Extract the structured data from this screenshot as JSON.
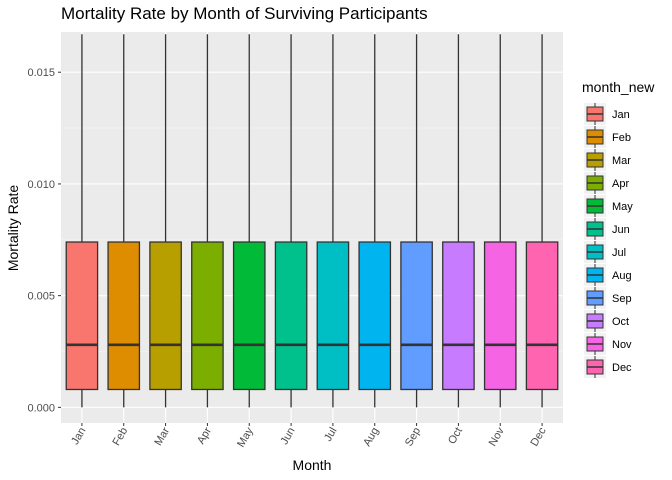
{
  "chart_data": {
    "type": "boxplot",
    "title": "Mortality Rate by Month of Surviving Participants",
    "xlabel": "Month",
    "ylabel": "Mortality Rate",
    "ylim": [
      -0.0007,
      0.0168
    ],
    "yticks": [
      0.0,
      0.005,
      0.01,
      0.015
    ],
    "ytick_labels": [
      "0.000",
      "0.005",
      "0.010",
      "0.015"
    ],
    "grid": true,
    "legend": {
      "title": "month_new",
      "position": "right"
    },
    "categories": [
      "Jan",
      "Feb",
      "Mar",
      "Apr",
      "May",
      "Jun",
      "Jul",
      "Aug",
      "Sep",
      "Oct",
      "Nov",
      "Dec"
    ],
    "colors": [
      "#F8766D",
      "#DE8C00",
      "#B79F00",
      "#7CAE00",
      "#00BA38",
      "#00C08B",
      "#00BFC4",
      "#00B4F0",
      "#619CFF",
      "#C77CFF",
      "#F564E3",
      "#FF64B0"
    ],
    "boxes": [
      {
        "min": 0.0,
        "q1": 0.0008,
        "median": 0.0028,
        "q3": 0.0074,
        "max": 0.0167
      },
      {
        "min": 0.0,
        "q1": 0.0008,
        "median": 0.0028,
        "q3": 0.0074,
        "max": 0.0167
      },
      {
        "min": 0.0,
        "q1": 0.0008,
        "median": 0.0028,
        "q3": 0.0074,
        "max": 0.0167
      },
      {
        "min": 0.0,
        "q1": 0.0008,
        "median": 0.0028,
        "q3": 0.0074,
        "max": 0.0167
      },
      {
        "min": 0.0,
        "q1": 0.0008,
        "median": 0.0028,
        "q3": 0.0074,
        "max": 0.0167
      },
      {
        "min": 0.0,
        "q1": 0.0008,
        "median": 0.0028,
        "q3": 0.0074,
        "max": 0.0167
      },
      {
        "min": 0.0,
        "q1": 0.0008,
        "median": 0.0028,
        "q3": 0.0074,
        "max": 0.0167
      },
      {
        "min": 0.0,
        "q1": 0.0008,
        "median": 0.0028,
        "q3": 0.0074,
        "max": 0.0167
      },
      {
        "min": 0.0,
        "q1": 0.0008,
        "median": 0.0028,
        "q3": 0.0074,
        "max": 0.0167
      },
      {
        "min": 0.0,
        "q1": 0.0008,
        "median": 0.0028,
        "q3": 0.0074,
        "max": 0.0167
      },
      {
        "min": 0.0,
        "q1": 0.0008,
        "median": 0.0028,
        "q3": 0.0074,
        "max": 0.0167
      },
      {
        "min": 0.0,
        "q1": 0.0008,
        "median": 0.0028,
        "q3": 0.0074,
        "max": 0.0167
      }
    ]
  }
}
